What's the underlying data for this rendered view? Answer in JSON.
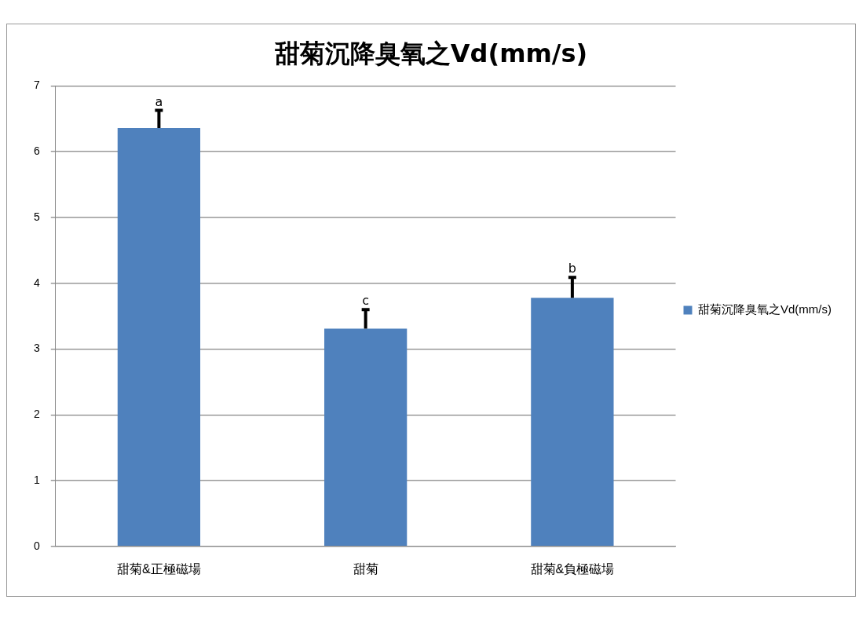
{
  "chart_data": {
    "type": "bar",
    "title": "甜菊沉降臭氧之Vd(mm/s)",
    "categories": [
      "甜菊&正極磁場",
      "甜菊",
      "甜菊&負極磁場"
    ],
    "series": [
      {
        "name": "甜菊沉降臭氧之Vd(mm/s)",
        "color": "#4f81bd",
        "values": [
          6.36,
          3.31,
          3.78
        ],
        "errors": [
          [
            6.36,
            6.63
          ],
          [
            3.31,
            3.6
          ],
          [
            3.78,
            4.09
          ]
        ]
      }
    ],
    "ylim": [
      0,
      7
    ],
    "yticks": [
      0,
      1,
      2,
      3,
      4,
      5,
      6,
      7
    ],
    "grid": "y",
    "legend": "right",
    "annotations": [
      {
        "text": "a",
        "x": "甜菊&正極磁場",
        "y": 6.63
      },
      {
        "text": "c",
        "x": "甜菊",
        "y": 3.6
      },
      {
        "text": "b",
        "x": "甜菊&負極磁場",
        "y": 4.09
      }
    ]
  }
}
